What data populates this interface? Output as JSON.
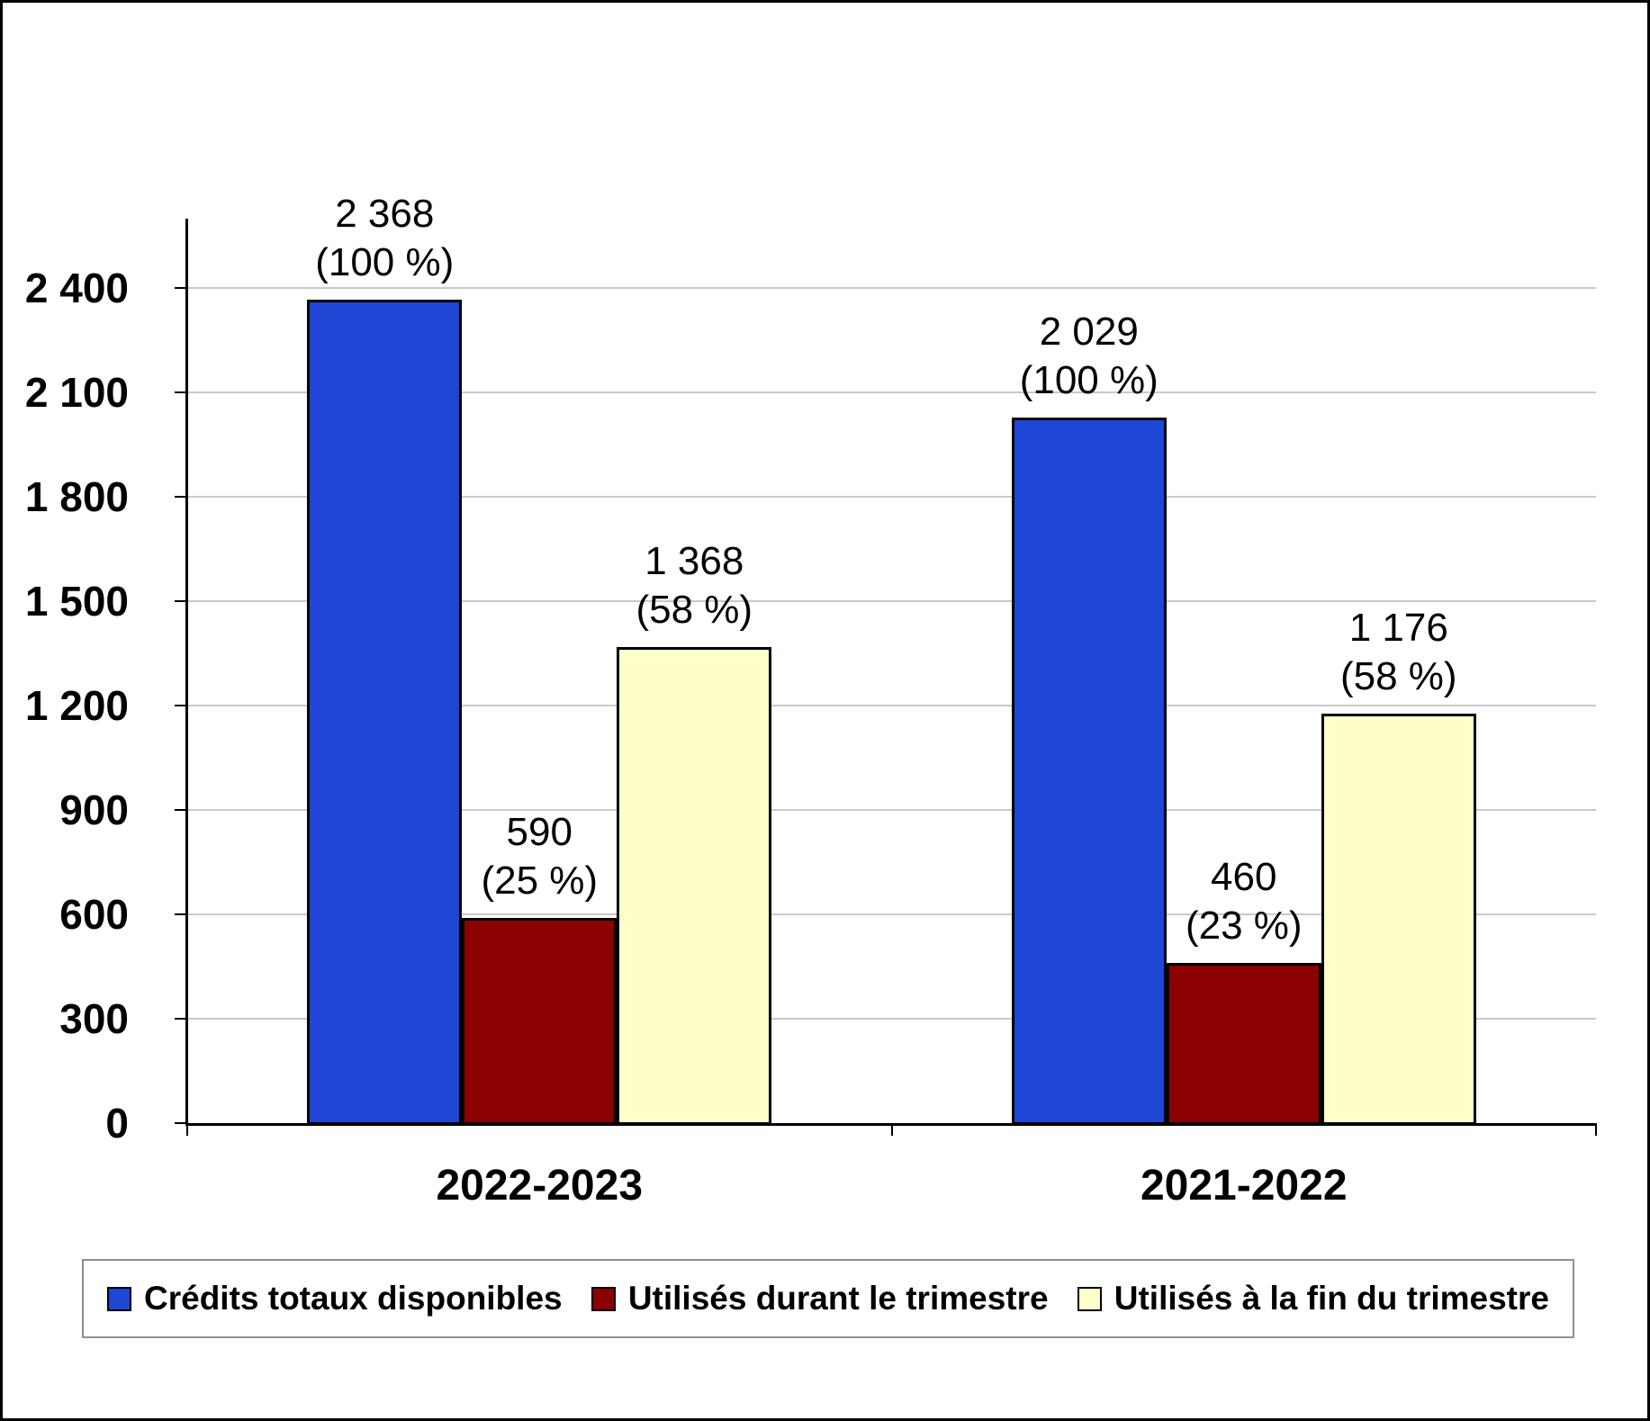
{
  "chart_data": {
    "type": "bar",
    "title": "",
    "xlabel": "",
    "ylabel": "",
    "categories": [
      "2022-2023",
      "2021-2022"
    ],
    "series": [
      {
        "name": "Crédits totaux disponibles",
        "color": "#1E46D5",
        "values": [
          2368,
          2029
        ],
        "data_labels": [
          [
            "2 368",
            "(100 %)"
          ],
          [
            "2 029",
            "(100 %)"
          ]
        ]
      },
      {
        "name": "Utilisés durant le trimestre",
        "color": "#8B0000",
        "values": [
          590,
          460
        ],
        "data_labels": [
          [
            "590",
            "(25 %)"
          ],
          [
            "460",
            "(23 %)"
          ]
        ]
      },
      {
        "name": "Utilisés à la fin du trimestre",
        "color": "#FFFFCC",
        "values": [
          1368,
          1176
        ],
        "data_labels": [
          [
            "1 368",
            "(58 %)"
          ],
          [
            "1 176",
            "(58 %)"
          ]
        ]
      }
    ],
    "y_ticks": [
      {
        "value": 0,
        "label": "0"
      },
      {
        "value": 300,
        "label": "300"
      },
      {
        "value": 600,
        "label": "600"
      },
      {
        "value": 900,
        "label": "900"
      },
      {
        "value": 1200,
        "label": "1 200"
      },
      {
        "value": 1500,
        "label": "1 500"
      },
      {
        "value": 1800,
        "label": "1 800"
      },
      {
        "value": 2100,
        "label": "2 100"
      },
      {
        "value": 2400,
        "label": "2 400"
      }
    ],
    "ylim": [
      0,
      2600
    ],
    "grid": true,
    "legend_position": "bottom"
  },
  "colors": {
    "background": "#FFFFFF",
    "gridline": "#C9C9C9",
    "axis": "#000000",
    "legend_border": "#8F8F8F"
  }
}
